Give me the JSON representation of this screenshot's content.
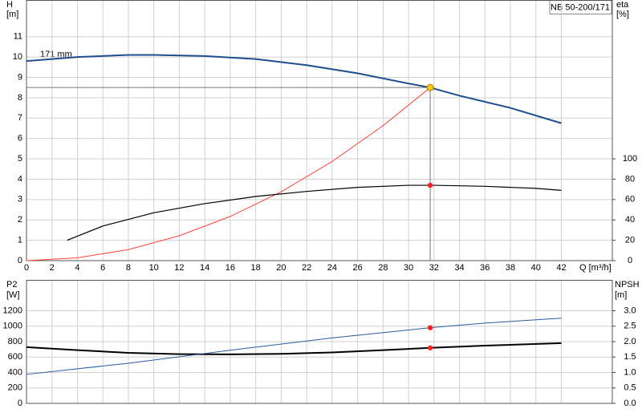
{
  "chart_data": [
    {
      "type": "line",
      "title": "NB 50-200/171",
      "ylabel": "H",
      "yunit": "[m]",
      "y2label": "eta",
      "y2unit": "[%]",
      "xlabel": "Q [m³/h]",
      "annotation": "171 mm",
      "grid": true,
      "xlim": [
        0,
        46
      ],
      "xticks": [
        0,
        2,
        4,
        6,
        8,
        10,
        12,
        14,
        16,
        18,
        20,
        22,
        24,
        26,
        28,
        30,
        32,
        34,
        36,
        38,
        40,
        42
      ],
      "ylim": [
        0,
        12.8
      ],
      "yticks": [
        0,
        1,
        2,
        3,
        4,
        5,
        6,
        7,
        8,
        9,
        10,
        11
      ],
      "y2lim": [
        0,
        256
      ],
      "y2ticks": [
        0,
        20,
        40,
        60,
        80,
        100
      ],
      "series": [
        {
          "color": "#1f4e8c",
          "width": 2,
          "x": [
            0,
            4,
            8,
            10,
            14,
            18,
            22,
            26,
            30,
            31.7,
            34,
            38,
            42
          ],
          "values": [
            9.8,
            10.0,
            10.1,
            10.1,
            10.05,
            9.9,
            9.6,
            9.2,
            8.7,
            8.5,
            8.1,
            7.5,
            6.75
          ]
        },
        {
          "color": "#ff4040",
          "width": 1,
          "x": [
            0,
            4,
            8,
            12,
            16,
            20,
            24,
            28,
            31.7
          ],
          "values": [
            0,
            0.14,
            0.54,
            1.22,
            2.17,
            3.38,
            4.87,
            6.63,
            8.5
          ]
        },
        {
          "color": "#000000",
          "width": 1.2,
          "axis": "y2",
          "x": [
            3.2,
            6,
            10,
            14,
            18,
            22,
            26,
            30,
            32,
            36,
            40,
            42
          ],
          "values": [
            20,
            34,
            47,
            56,
            63,
            68,
            72,
            74,
            74,
            73,
            71,
            69
          ]
        }
      ],
      "duty": {
        "x": 31.7,
        "y": 8.5,
        "y2": 74,
        "color": "#f5c518",
        "y2color": "#ff2020"
      }
    },
    {
      "type": "line",
      "ylabel": "P2",
      "yunit": "[W]",
      "y2label": "NPSH",
      "y2unit": "[m]",
      "grid": true,
      "xlim": [
        0,
        46
      ],
      "xticks": [
        0,
        2,
        4,
        6,
        8,
        10,
        12,
        14,
        16,
        18,
        20,
        22,
        24,
        26,
        28,
        30,
        32,
        34,
        36,
        38,
        40,
        42
      ],
      "ylim": [
        0,
        1600
      ],
      "yticks": [
        0,
        200,
        400,
        600,
        800,
        1000,
        1200
      ],
      "y2lim": [
        0,
        4
      ],
      "y2ticks": [
        {
          "value": 0,
          "label": "0.0"
        },
        0.5,
        {
          "value": 1,
          "label": "1.0"
        },
        1.5,
        {
          "value": 2,
          "label": "2.0"
        },
        2.5,
        {
          "value": 3,
          "label": "3.0"
        }
      ],
      "series": [
        {
          "color": "#000000",
          "width": 2,
          "x": [
            0,
            4,
            8,
            12,
            16,
            20,
            24,
            28,
            31.7,
            36,
            42
          ],
          "values": [
            729,
            690,
            655,
            638,
            635,
            642,
            660,
            690,
            719,
            748,
            781
          ]
        },
        {
          "color": "#2a5b9a",
          "width": 1,
          "axis": "y2",
          "x": [
            0,
            8,
            16,
            24,
            31.7,
            36,
            42
          ],
          "values": [
            0.94,
            1.3,
            1.72,
            2.12,
            2.45,
            2.6,
            2.76
          ]
        }
      ],
      "duty": {
        "x": 31.7,
        "y": 719,
        "y2": 2.45,
        "color": "#ff2020",
        "y2color": "#ff2020"
      }
    }
  ]
}
